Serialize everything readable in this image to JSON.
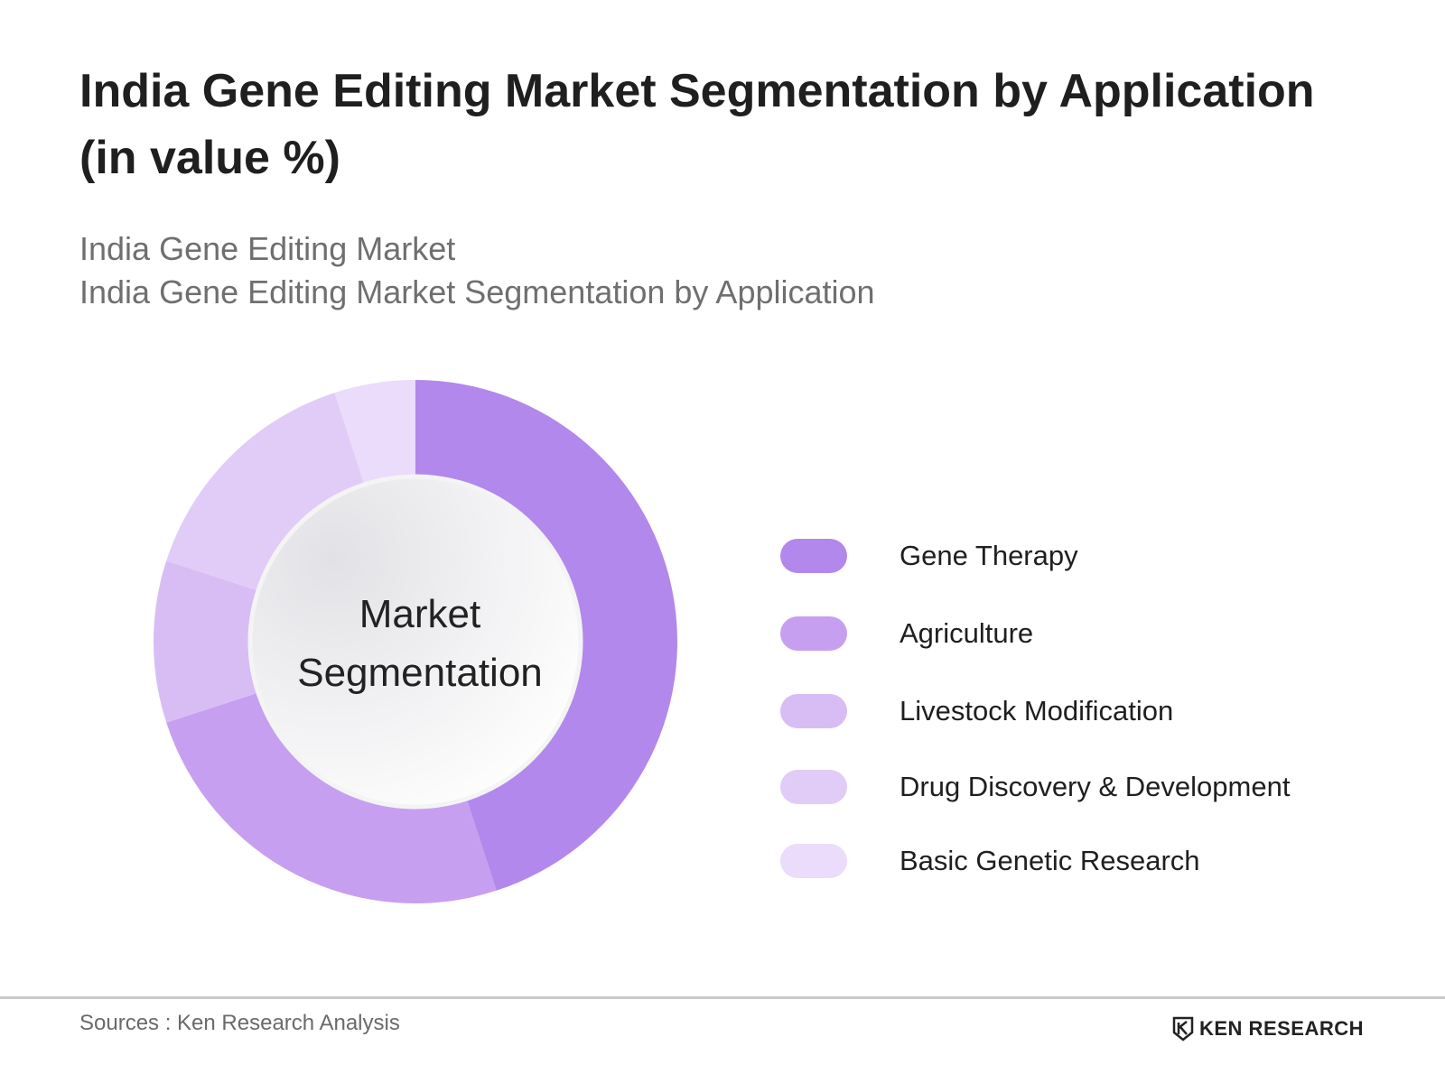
{
  "header": {
    "title": "India Gene Editing Market Segmentation by Application (in value %)",
    "subtitle_line1": "India Gene Editing Market",
    "subtitle_line2": "India Gene Editing Market Segmentation by Application"
  },
  "chart_data": {
    "type": "pie",
    "variant": "donut",
    "center_label_line1": "Market",
    "center_label_line2": "Segmentation",
    "legend_position": "right",
    "categories": [
      "Gene Therapy",
      "Agriculture",
      "Livestock Modification",
      "Drug Discovery & Development",
      "Basic Genetic Research"
    ],
    "values": [
      45,
      25,
      10,
      15,
      5
    ],
    "colors": [
      "#b388ec",
      "#c79ff0",
      "#d8bdf5",
      "#e1ccf7",
      "#eadcfa"
    ]
  },
  "footer": {
    "source": "Sources : Ken Research Analysis",
    "brand": "KEN RESEARCH",
    "brand_icon": "ken-research-logo-icon"
  }
}
